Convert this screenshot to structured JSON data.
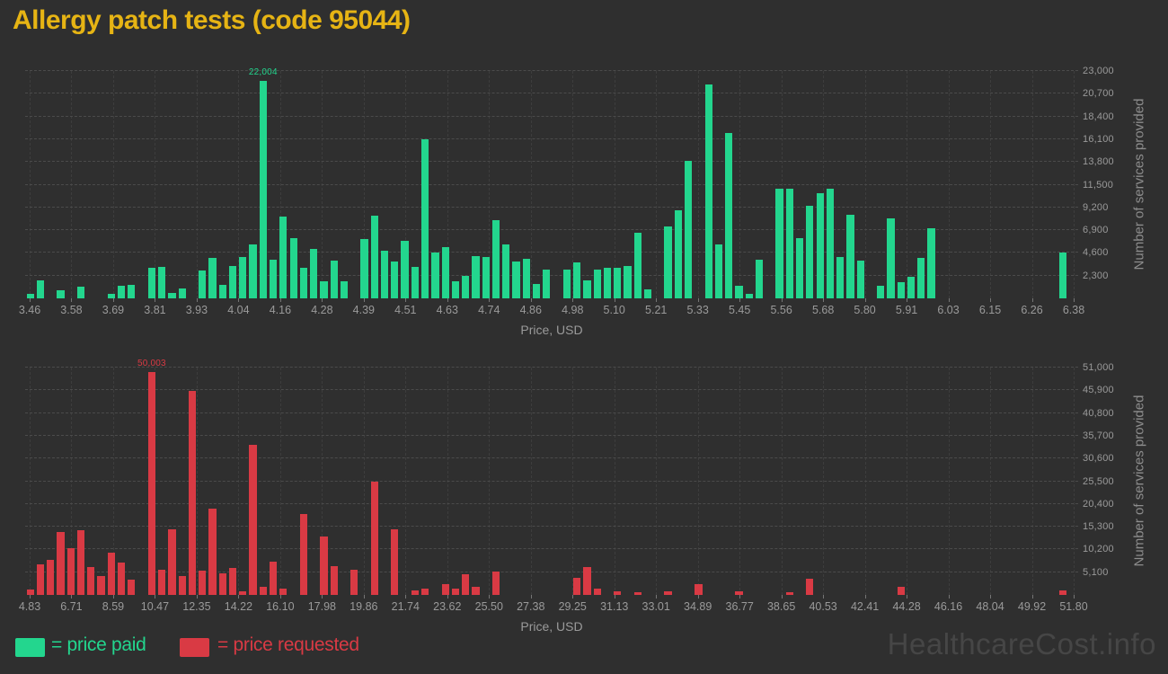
{
  "page": {
    "title": "Allergy patch tests (code 95044)",
    "watermark": "HealthcareCost.info"
  },
  "colors": {
    "background": "#2f2f2f",
    "title": "#e6b414",
    "paid_green": "#23d68e",
    "requested_red": "#d93a44",
    "axis_text": "#9a9a9a",
    "axis_title": "#8d8d8d",
    "gridline": "#4b4b4b",
    "vertical_gridline": "#3d3d3d",
    "watermark": "#464646"
  },
  "legend": {
    "paid": "= price paid",
    "requested": "= price requested"
  },
  "chart_data": [
    {
      "type": "bar",
      "series_name": "price paid",
      "color_key": "paid_green",
      "xlabel": "Price, USD",
      "ylabel": "Number of services provided",
      "grid": true,
      "legend_position": "bottom-left",
      "x_range": [
        3.45,
        6.38
      ],
      "y_max": 23000,
      "x_ticks": [
        "3.46",
        "3.58",
        "3.69",
        "3.81",
        "3.93",
        "4.04",
        "4.16",
        "4.28",
        "4.39",
        "4.51",
        "4.63",
        "4.74",
        "4.86",
        "4.98",
        "5.10",
        "5.21",
        "5.33",
        "5.45",
        "5.56",
        "5.68",
        "5.80",
        "5.91",
        "6.03",
        "6.15",
        "6.26",
        "6.38"
      ],
      "y_ticks": [
        "2,300",
        "4,600",
        "6,900",
        "9,200",
        "11,500",
        "13,800",
        "16,100",
        "18,400",
        "20,700",
        "23,000"
      ],
      "annotation": {
        "text": "22,004",
        "bar_index": 23,
        "value": 22004
      },
      "values": [
        500,
        1800,
        0,
        800,
        0,
        1200,
        0,
        0,
        500,
        1250,
        1350,
        0,
        3100,
        3200,
        550,
        1000,
        0,
        2850,
        4100,
        1400,
        3300,
        4200,
        5450,
        22004,
        3900,
        8300,
        6050,
        3100,
        5000,
        1700,
        3800,
        1700,
        0,
        6000,
        8400,
        4850,
        3760,
        5800,
        3150,
        16100,
        4600,
        5200,
        1700,
        2300,
        4300,
        4200,
        7900,
        5450,
        3700,
        4000,
        1450,
        2950,
        0,
        2950,
        3600,
        1800,
        2950,
        3050,
        3100,
        3250,
        6650,
        900,
        0,
        7300,
        8950,
        13900,
        0,
        21600,
        5450,
        16700,
        1250,
        500,
        3900,
        0,
        11100,
        11100,
        6050,
        9350,
        10650,
        11050,
        4200,
        8450,
        3850,
        0,
        1300,
        8100,
        1650,
        2150,
        4050,
        7130,
        0,
        0,
        0,
        0,
        0,
        0,
        0,
        0,
        0,
        0,
        0,
        0,
        4650,
        0
      ]
    },
    {
      "type": "bar",
      "series_name": "price requested",
      "color_key": "requested_red",
      "xlabel": "Price, USD",
      "ylabel": "Number of services provided",
      "grid": true,
      "x_range": [
        4.7,
        51.9
      ],
      "y_max": 51000,
      "x_ticks": [
        "4.83",
        "6.71",
        "8.59",
        "10.47",
        "12.35",
        "14.22",
        "16.10",
        "17.98",
        "19.86",
        "21.74",
        "23.62",
        "25.50",
        "27.38",
        "29.25",
        "31.13",
        "33.01",
        "34.89",
        "36.77",
        "38.65",
        "40.53",
        "42.41",
        "44.28",
        "46.16",
        "48.04",
        "49.92",
        "51.80"
      ],
      "y_ticks": [
        "5,100",
        "10,200",
        "15,300",
        "20,400",
        "25,500",
        "30,600",
        "35,700",
        "40,800",
        "45,900",
        "51,000"
      ],
      "annotation": {
        "text": "50,003",
        "bar_index": 12,
        "value": 50003
      },
      "values": [
        1200,
        6900,
        7900,
        14100,
        10400,
        14500,
        6300,
        4300,
        9400,
        7300,
        3400,
        0,
        50003,
        5700,
        14800,
        4200,
        45800,
        5400,
        19400,
        4800,
        6100,
        900,
        33700,
        1750,
        7500,
        1500,
        0,
        18200,
        0,
        13200,
        6500,
        0,
        5600,
        0,
        25400,
        0,
        14700,
        0,
        950,
        1400,
        0,
        2400,
        1400,
        4700,
        1750,
        0,
        5300,
        0,
        0,
        0,
        0,
        0,
        0,
        0,
        3800,
        6300,
        1350,
        0,
        750,
        0,
        600,
        0,
        0,
        750,
        0,
        0,
        2400,
        0,
        0,
        0,
        800,
        0,
        0,
        0,
        0,
        700,
        0,
        3600,
        0,
        0,
        0,
        0,
        0,
        0,
        0,
        0,
        1750,
        0,
        0,
        0,
        0,
        0,
        0,
        0,
        0,
        0,
        0,
        0,
        0,
        0,
        0,
        0,
        1100,
        0
      ]
    }
  ]
}
